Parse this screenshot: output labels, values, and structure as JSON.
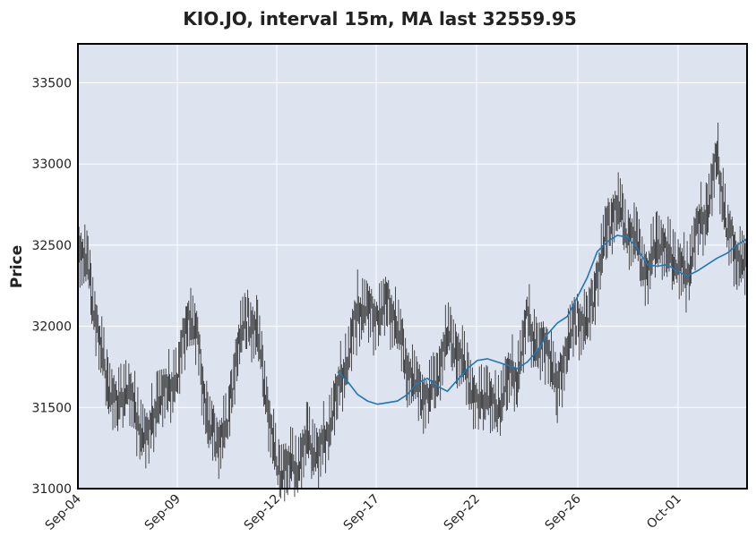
{
  "chart_data": {
    "type": "candlestick",
    "title": "KIO.JO, interval 15m, MA last 32559.95",
    "ylabel": "Price",
    "xlabel": "",
    "ylim": [
      31000,
      33740
    ],
    "yticks": [
      "31000",
      "31500",
      "32000",
      "32500",
      "33000",
      "33500"
    ],
    "xticks": [
      "Sep-04",
      "Sep-09",
      "Sep-12",
      "Sep-17",
      "Sep-22",
      "Sep-26",
      "Oct-01"
    ],
    "grid": true,
    "series": [
      {
        "name": "Price",
        "kind": "ohlc",
        "x": [
          0,
          5,
          10,
          15,
          20,
          25,
          30,
          35,
          40,
          45,
          50,
          55,
          60,
          65,
          70,
          75,
          80,
          85,
          90,
          95,
          100,
          105,
          110,
          115,
          120,
          125,
          130,
          135,
          140,
          145,
          150,
          155,
          160,
          165,
          170,
          175,
          180,
          185,
          190,
          195,
          200,
          205,
          210,
          215,
          220,
          225,
          230,
          235,
          240,
          245,
          250,
          255,
          260,
          265,
          270,
          275,
          280,
          285,
          290,
          295,
          300,
          305,
          310,
          315,
          320,
          325,
          330,
          335
        ],
        "close": [
          32500,
          32350,
          31950,
          31650,
          31500,
          31650,
          31400,
          31300,
          31550,
          31600,
          31700,
          32100,
          31900,
          31400,
          31300,
          31400,
          31900,
          32050,
          31950,
          31500,
          31100,
          31150,
          31150,
          31300,
          31200,
          31350,
          31600,
          31800,
          32100,
          32100,
          32050,
          32150,
          32000,
          31750,
          31600,
          31550,
          31700,
          31950,
          31850,
          31700,
          31500,
          31600,
          31450,
          31700,
          31700,
          32050,
          31850,
          31900,
          31600,
          31900,
          32050,
          32000,
          32300,
          32600,
          32750,
          32600,
          32500,
          32300,
          32550,
          32450,
          32400,
          32300,
          32600,
          32700,
          33050,
          32600,
          32450,
          32350
        ]
      },
      {
        "name": "MA",
        "kind": "line",
        "color": "#1f77b4",
        "x": [
          130,
          135,
          140,
          145,
          150,
          155,
          160,
          165,
          170,
          175,
          180,
          185,
          190,
          195,
          200,
          205,
          210,
          215,
          220,
          225,
          230,
          235,
          240,
          245,
          250,
          255,
          260,
          265,
          270,
          275,
          280,
          285,
          290,
          295,
          300,
          305,
          310,
          315,
          320,
          325,
          330,
          335
        ],
        "values": [
          31720,
          31660,
          31580,
          31540,
          31520,
          31530,
          31540,
          31580,
          31650,
          31680,
          31630,
          31600,
          31670,
          31740,
          31790,
          31800,
          31780,
          31760,
          31740,
          31780,
          31850,
          31950,
          32020,
          32060,
          32180,
          32300,
          32460,
          32520,
          32560,
          32550,
          32480,
          32380,
          32370,
          32380,
          32340,
          32310,
          32340,
          32380,
          32420,
          32450,
          32500,
          32540
        ]
      }
    ]
  }
}
